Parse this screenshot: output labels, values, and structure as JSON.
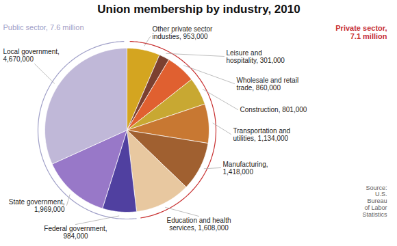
{
  "chart_data": {
    "type": "pie",
    "title": "Union membership by industry, 2010",
    "categories": [
      "Other private sector\nindusties, 953,000",
      "Leisure and\nhospitality, 301,000",
      "Wholesale and retail\ntrade, 860,000",
      "Construction, 801,000",
      "Transportation and\nutilities, 1,134,000",
      "Manufacturing,\n1,418,000",
      "Education and health\nservices, 1,608,000",
      "Federal government,\n984,000",
      "State government,\n1,969,000",
      "Local government,\n4,670,000"
    ],
    "values": [
      953000,
      301000,
      860000,
      801000,
      1134000,
      1418000,
      1608000,
      984000,
      1969000,
      4670000
    ],
    "colors": [
      "#D4A520",
      "#7B4030",
      "#E06030",
      "#C8A832",
      "#C87832",
      "#A06030",
      "#E8C8A0",
      "#5040A0",
      "#9878C8",
      "#C0B8D8"
    ],
    "annotations": [
      {
        "text": "Public sector, 7.6 million",
        "color": "#A0A0C8"
      },
      {
        "text": "Private sector,\n7.1 million",
        "color": "#C83030"
      },
      {
        "text": "Source:\nU.S.\nBureau\nof Labor\nStatistics"
      }
    ]
  }
}
